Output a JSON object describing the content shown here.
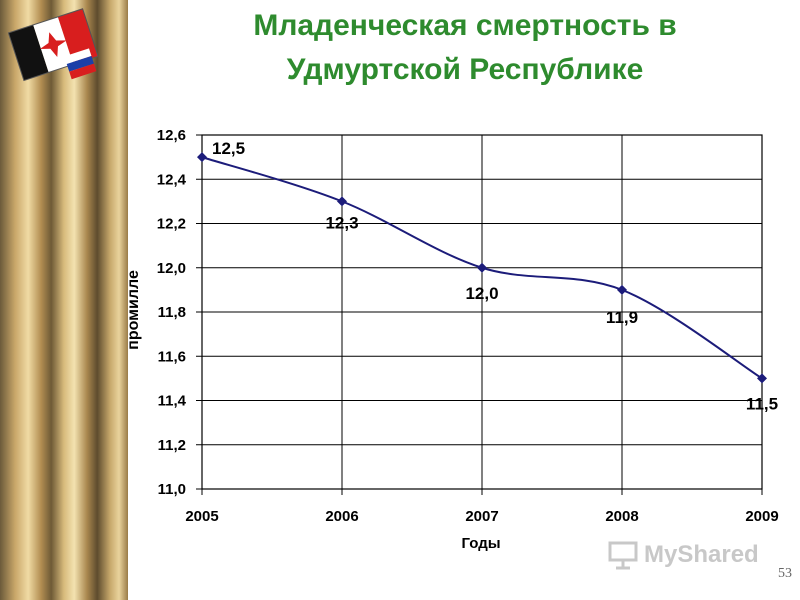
{
  "slide": {
    "title_line1": "Младенческая смертность в",
    "title_line2": "Удмуртской Республике",
    "watermark": "MyShared",
    "page_number": "53"
  },
  "colors": {
    "title": "#2e8b2e",
    "series": "#1c1c7a",
    "grid": "#000000"
  },
  "chart_data": {
    "type": "line",
    "x": [
      2005,
      2006,
      2007,
      2008,
      2009
    ],
    "series": [
      {
        "values": [
          12.5,
          12.3,
          12.0,
          11.9,
          11.5
        ]
      }
    ],
    "data_labels": [
      "12,5",
      "12,3",
      "12,0",
      "11,9",
      "11,5"
    ],
    "xlabel": "Годы",
    "ylabel": "промилле",
    "ylim": [
      11.0,
      12.6
    ],
    "yticks": [
      11.0,
      11.2,
      11.4,
      11.6,
      11.8,
      12.0,
      12.2,
      12.4,
      12.6
    ],
    "ytick_labels": [
      "11,0",
      "11,2",
      "11,4",
      "11,6",
      "11,8",
      "12,0",
      "12,2",
      "12,4",
      "12,6"
    ],
    "xtick_labels": [
      "2005",
      "2006",
      "2007",
      "2008",
      "2009"
    ],
    "grid": true,
    "smoothed": true,
    "marker": "diamond"
  }
}
